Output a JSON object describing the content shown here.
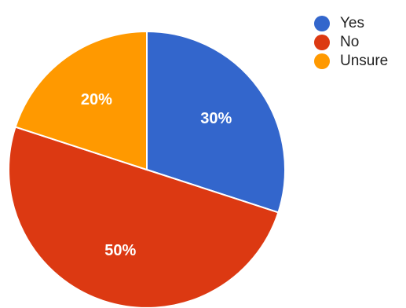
{
  "chart_data": {
    "type": "pie",
    "title": "",
    "slices": [
      {
        "label": "Yes",
        "value": 30,
        "display": "30%",
        "color": "#3366cc"
      },
      {
        "label": "No",
        "value": 50,
        "display": "50%",
        "color": "#dc3912"
      },
      {
        "label": "Unsure",
        "value": 20,
        "display": "20%",
        "color": "#ff9900"
      }
    ],
    "start_angle_deg": 0,
    "direction": "clockwise",
    "legend_position": "top-right"
  }
}
